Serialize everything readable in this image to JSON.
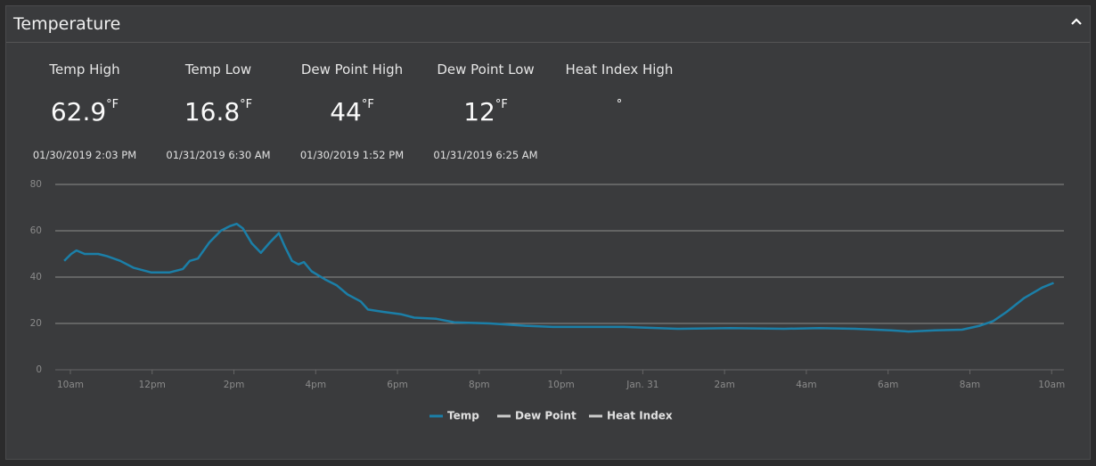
{
  "header": {
    "title": "Temperature"
  },
  "stats": [
    {
      "label": "Temp High",
      "value": 62.9,
      "unit": "°F",
      "time": "01/30/2019 2:03 PM"
    },
    {
      "label": "Temp Low",
      "value": 16.8,
      "unit": "°F",
      "time": "01/31/2019 6:30 AM"
    },
    {
      "label": "Dew Point High",
      "value": 44,
      "unit": "°F",
      "time": "01/30/2019 1:52 PM"
    },
    {
      "label": "Dew Point Low",
      "value": 12,
      "unit": "°F",
      "time": "01/31/2019 6:25 AM"
    },
    {
      "label": "Heat Index High",
      "unit": "°"
    }
  ],
  "chart_data": {
    "type": "line",
    "x": [
      -0.15,
      0.02,
      0.15,
      0.35,
      0.68,
      0.9,
      1.22,
      1.55,
      1.98,
      2.42,
      2.75,
      2.92,
      3.12,
      3.4,
      3.68,
      3.9,
      4.07,
      4.22,
      4.44,
      4.66,
      4.88,
      5.1,
      5.25,
      5.42,
      5.58,
      5.71,
      5.9,
      6.23,
      6.51,
      6.78,
      7.1,
      7.28,
      7.65,
      8.08,
      8.41,
      8.95,
      9.39,
      10.26,
      11.13,
      11.79,
      13.53,
      14.84,
      16.14,
      17.45,
      18.32,
      19.19,
      20.07,
      20.5,
      21.15,
      21.81,
      22.24,
      22.57,
      22.9,
      23.33,
      23.77,
      24.05
    ],
    "series": [
      {
        "name": "Temp",
        "color": "#1b7fa8",
        "values": [
          47,
          50,
          51.5,
          50,
          50,
          49,
          47,
          44,
          42,
          42,
          43.5,
          47,
          48,
          55,
          60,
          62,
          63,
          61,
          54.5,
          50.5,
          55,
          59,
          53,
          47,
          45.5,
          46.5,
          42.5,
          39,
          36.5,
          32.5,
          29.5,
          26,
          25,
          24,
          22.5,
          22,
          20.5,
          20,
          19,
          18.5,
          18.5,
          17.7,
          18,
          17.7,
          18,
          17.7,
          17,
          16.5,
          17,
          17.3,
          19,
          21,
          25,
          31,
          35.5,
          37.5
        ]
      },
      {
        "name": "Dew Point",
        "color": "#cccccc",
        "values": [
          null,
          null,
          null,
          null,
          null,
          null,
          null,
          null,
          null,
          null,
          null,
          null,
          null,
          null,
          null,
          null,
          null,
          null,
          null,
          null,
          null,
          null,
          null,
          null,
          null,
          null,
          null,
          null,
          null,
          null,
          null,
          null,
          null,
          null,
          null,
          null,
          null,
          null,
          null,
          null,
          null,
          null,
          null,
          null,
          null,
          null,
          null,
          null,
          null,
          null,
          null,
          null,
          null,
          null,
          null,
          null
        ]
      },
      {
        "name": "Heat Index",
        "color": "#cccccc",
        "values": [
          null,
          null,
          null,
          null,
          null,
          null,
          null,
          null,
          null,
          null,
          null,
          null,
          null,
          null,
          null,
          null,
          null,
          null,
          null,
          null,
          null,
          null,
          null,
          null,
          null,
          null,
          null,
          null,
          null,
          null,
          null,
          null,
          null,
          null,
          null,
          null,
          null,
          null,
          null,
          null,
          null,
          null,
          null,
          null,
          null,
          null,
          null,
          null,
          null,
          null,
          null,
          null,
          null,
          null,
          null,
          null
        ]
      }
    ],
    "xlim": [
      -0.37,
      24.3
    ],
    "xticks": [
      {
        "value": 0,
        "label": "10am"
      },
      {
        "value": 2,
        "label": "12pm"
      },
      {
        "value": 4,
        "label": "2pm"
      },
      {
        "value": 6,
        "label": "4pm"
      },
      {
        "value": 8,
        "label": "6pm"
      },
      {
        "value": 10,
        "label": "8pm"
      },
      {
        "value": 12,
        "label": "10pm"
      },
      {
        "value": 14,
        "label": "Jan. 31"
      },
      {
        "value": 16,
        "label": "2am"
      },
      {
        "value": 18,
        "label": "4am"
      },
      {
        "value": 20,
        "label": "6am"
      },
      {
        "value": 22,
        "label": "8am"
      },
      {
        "value": 24,
        "label": "10am"
      }
    ],
    "ylim": [
      0,
      80
    ],
    "yticks": [
      0,
      20,
      40,
      60,
      80
    ],
    "grid": true
  }
}
